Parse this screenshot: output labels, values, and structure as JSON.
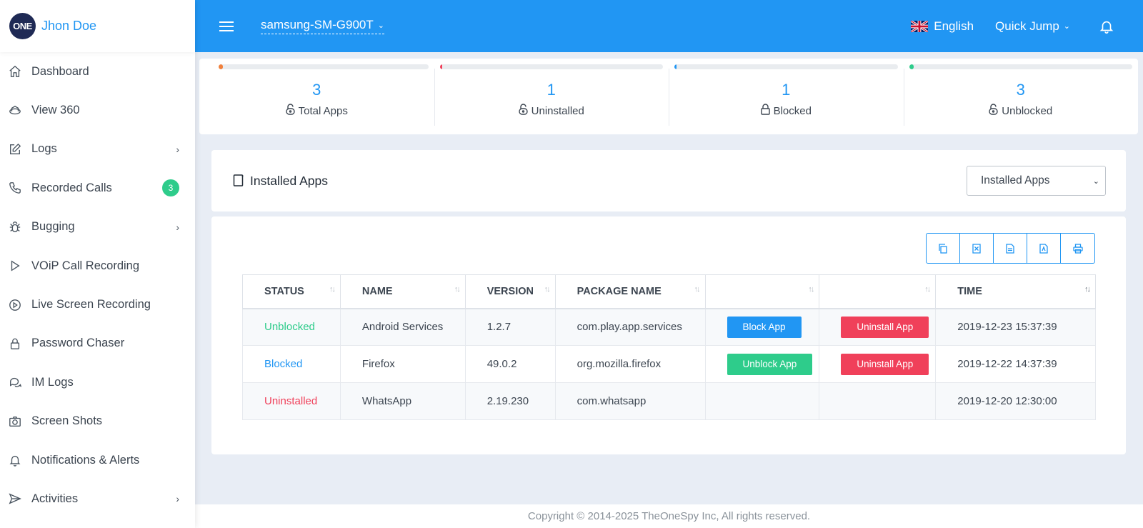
{
  "user": {
    "logo_text": "ONE",
    "name": "Jhon Doe"
  },
  "sidebar": {
    "items": [
      {
        "label": "Dashboard",
        "icon": "home-icon"
      },
      {
        "label": "View 360",
        "icon": "view360-icon"
      },
      {
        "label": "Logs",
        "icon": "edit-icon",
        "has_children": true
      },
      {
        "label": "Recorded Calls",
        "icon": "phone-icon",
        "badge": "3"
      },
      {
        "label": "Bugging",
        "icon": "bug-icon",
        "has_children": true
      },
      {
        "label": "VOiP Call Recording",
        "icon": "play-icon"
      },
      {
        "label": "Live Screen Recording",
        "icon": "play-circle-icon"
      },
      {
        "label": "Password Chaser",
        "icon": "lock-icon"
      },
      {
        "label": "IM Logs",
        "icon": "chat-icon"
      },
      {
        "label": "Screen Shots",
        "icon": "camera-icon"
      },
      {
        "label": "Notifications & Alerts",
        "icon": "bell-icon"
      },
      {
        "label": "Activities",
        "icon": "send-icon",
        "has_children": true
      }
    ]
  },
  "topbar": {
    "device": "samsung-SM-G900T",
    "language": "English",
    "quick_jump": "Quick Jump"
  },
  "stats": [
    {
      "value": "3",
      "label": "Total Apps",
      "color": "#f0803c",
      "fill": 0.02
    },
    {
      "value": "1",
      "label": "Uninstalled",
      "color": "#f0405a",
      "fill": 0.01
    },
    {
      "value": "1",
      "label": "Blocked",
      "color": "#2196f3",
      "fill": 0.01
    },
    {
      "value": "3",
      "label": "Unblocked",
      "color": "#2ecc8b",
      "fill": 0.02
    }
  ],
  "panel": {
    "title": "Installed Apps",
    "select_value": "Installed Apps"
  },
  "toolbar": {
    "icons": [
      "copy-icon",
      "excel-icon",
      "csv-icon",
      "pdf-icon",
      "print-icon"
    ]
  },
  "table": {
    "headers": [
      "STATUS",
      "NAME",
      "VERSION",
      "PACKAGE NAME",
      "",
      "",
      "TIME"
    ],
    "rows": [
      {
        "status": "Unblocked",
        "status_class": "st-unblocked",
        "name": "Android Services",
        "version": "1.2.7",
        "package": "com.play.app.services",
        "action": "Block App",
        "action_class": "btn-blue",
        "uninstall": "Uninstall App",
        "time": "2019-12-23 15:37:39"
      },
      {
        "status": "Blocked",
        "status_class": "st-blocked",
        "name": "Firefox",
        "version": "49.0.2",
        "package": "org.mozilla.firefox",
        "action": "Unblock App",
        "action_class": "btn-green",
        "uninstall": "Uninstall App",
        "time": "2019-12-22 14:37:39"
      },
      {
        "status": "Uninstalled",
        "status_class": "st-uninstalled",
        "name": "WhatsApp",
        "version": "2.19.230",
        "package": "com.whatsapp",
        "action": "",
        "action_class": "",
        "uninstall": "",
        "time": "2019-12-20 12:30:00"
      }
    ]
  },
  "footer": {
    "copyright": "Copyright © 2014-2025 TheOneSpy Inc, All rights reserved."
  }
}
